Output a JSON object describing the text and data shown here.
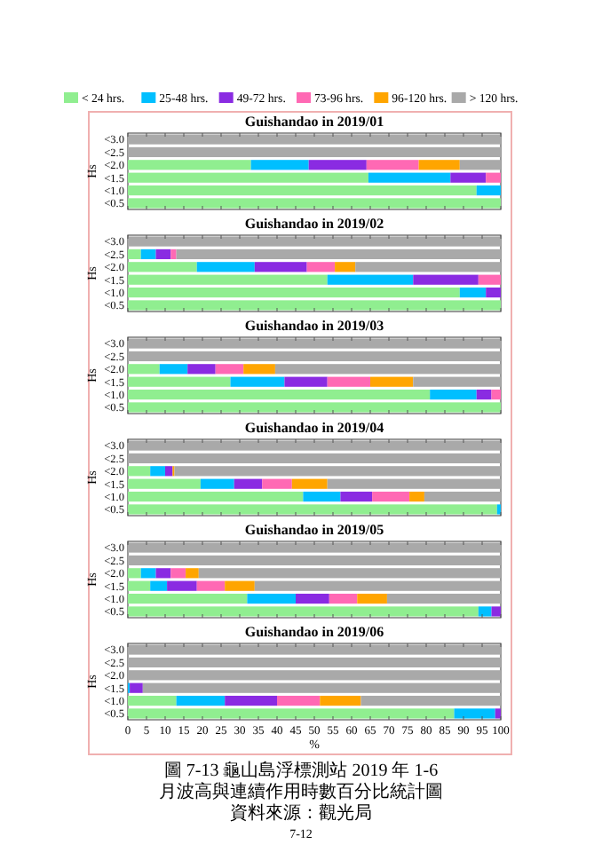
{
  "chart_data": [
    {
      "type": "bar",
      "orientation": "horizontal",
      "stacked": true,
      "title": "Guishandao in 2019/01",
      "ylabel": "Hs",
      "categories": [
        "<3.0",
        "<2.5",
        "<2.0",
        "<1.5",
        "<1.0",
        "<0.5"
      ],
      "xlim": [
        0,
        100
      ],
      "xticks": [
        0,
        5,
        10,
        15,
        20,
        25,
        30,
        35,
        40,
        45,
        50,
        55,
        60,
        65,
        70,
        75,
        80,
        85,
        90,
        95,
        100
      ],
      "tick_labels": "y",
      "legend": "top",
      "series": [
        {
          "name": "< 24 hrs.",
          "color": "#90ee90",
          "values": [
            0,
            0,
            33,
            64.5,
            93.5,
            100
          ]
        },
        {
          "name": "25-48 hrs.",
          "color": "#00bfff",
          "values": [
            0,
            0,
            15.5,
            22,
            6.5,
            0
          ]
        },
        {
          "name": "49-72 hrs.",
          "color": "#8a2be2",
          "values": [
            0,
            0,
            15.5,
            9.5,
            0,
            0
          ]
        },
        {
          "name": "73-96 hrs.",
          "color": "#ff69b4",
          "values": [
            0,
            0,
            14,
            4,
            0,
            0
          ]
        },
        {
          "name": "96-120 hrs.",
          "color": "#ffa500",
          "values": [
            0,
            0,
            11,
            0,
            0,
            0
          ]
        },
        {
          "name": "> 120 hrs.",
          "color": "#a9a9a9",
          "values": [
            100,
            100,
            11,
            0,
            0,
            0
          ]
        }
      ]
    },
    {
      "type": "bar",
      "orientation": "horizontal",
      "stacked": true,
      "title": "Guishandao in 2019/02",
      "ylabel": "Hs",
      "categories": [
        "<3.0",
        "<2.5",
        "<2.0",
        "<1.5",
        "<1.0",
        "<0.5"
      ],
      "xlim": [
        0,
        100
      ],
      "xticks": [
        0,
        5,
        10,
        15,
        20,
        25,
        30,
        35,
        40,
        45,
        50,
        55,
        60,
        65,
        70,
        75,
        80,
        85,
        90,
        95,
        100
      ],
      "tick_labels": "y",
      "series": [
        {
          "color": "#90ee90",
          "values": [
            0,
            3.5,
            18.5,
            53.5,
            89,
            100
          ]
        },
        {
          "color": "#00bfff",
          "values": [
            0,
            4,
            15.5,
            23,
            7,
            0
          ]
        },
        {
          "color": "#8a2be2",
          "values": [
            0,
            4,
            14,
            17.5,
            4,
            0
          ]
        },
        {
          "color": "#ff69b4",
          "values": [
            0,
            1.5,
            7.5,
            6,
            0,
            0
          ]
        },
        {
          "color": "#ffa500",
          "values": [
            0,
            0,
            5.5,
            0,
            0,
            0
          ]
        },
        {
          "color": "#a9a9a9",
          "values": [
            100,
            87,
            39,
            0,
            0,
            0
          ]
        }
      ]
    },
    {
      "type": "bar",
      "orientation": "horizontal",
      "stacked": true,
      "title": "Guishandao in 2019/03",
      "ylabel": "Hs",
      "categories": [
        "<3.0",
        "<2.5",
        "<2.0",
        "<1.5",
        "<1.0",
        "<0.5"
      ],
      "xlim": [
        0,
        100
      ],
      "xticks": [
        0,
        5,
        10,
        15,
        20,
        25,
        30,
        35,
        40,
        45,
        50,
        55,
        60,
        65,
        70,
        75,
        80,
        85,
        90,
        95,
        100
      ],
      "tick_labels": "y",
      "series": [
        {
          "color": "#90ee90",
          "values": [
            0,
            0,
            8.5,
            27.5,
            81,
            100
          ]
        },
        {
          "color": "#00bfff",
          "values": [
            0,
            0,
            7.5,
            14.5,
            12.5,
            0
          ]
        },
        {
          "color": "#8a2be2",
          "values": [
            0,
            0,
            7.5,
            11.5,
            4,
            0
          ]
        },
        {
          "color": "#ff69b4",
          "values": [
            0,
            0,
            7.5,
            11.5,
            2.5,
            0
          ]
        },
        {
          "color": "#ffa500",
          "values": [
            0,
            0,
            8.5,
            11.5,
            0,
            0
          ]
        },
        {
          "color": "#a9a9a9",
          "values": [
            100,
            100,
            60.5,
            23.5,
            0,
            0
          ]
        }
      ]
    },
    {
      "type": "bar",
      "orientation": "horizontal",
      "stacked": true,
      "title": "Guishandao in 2019/04",
      "ylabel": "Hs",
      "categories": [
        "<3.0",
        "<2.5",
        "<2.0",
        "<1.5",
        "<1.0",
        "<0.5"
      ],
      "xlim": [
        0,
        100
      ],
      "xticks": [
        0,
        5,
        10,
        15,
        20,
        25,
        30,
        35,
        40,
        45,
        50,
        55,
        60,
        65,
        70,
        75,
        80,
        85,
        90,
        95,
        100
      ],
      "tick_labels": "y",
      "series": [
        {
          "color": "#90ee90",
          "values": [
            0,
            0,
            6,
            19.5,
            47,
            99
          ]
        },
        {
          "color": "#00bfff",
          "values": [
            0,
            0,
            4,
            9,
            10,
            1
          ]
        },
        {
          "color": "#8a2be2",
          "values": [
            0,
            0,
            2,
            7.5,
            8.5,
            0
          ]
        },
        {
          "color": "#ff69b4",
          "values": [
            0,
            0,
            0,
            8,
            10,
            0
          ]
        },
        {
          "color": "#ffa500",
          "values": [
            0,
            0,
            0.5,
            9.5,
            4,
            0
          ]
        },
        {
          "color": "#a9a9a9",
          "values": [
            100,
            100,
            87.5,
            46.5,
            20.5,
            0
          ]
        }
      ]
    },
    {
      "type": "bar",
      "orientation": "horizontal",
      "stacked": true,
      "title": "Guishandao in 2019/05",
      "ylabel": "Hs",
      "categories": [
        "<3.0",
        "<2.5",
        "<2.0",
        "<1.5",
        "<1.0",
        "<0.5"
      ],
      "xlim": [
        0,
        100
      ],
      "xticks": [
        0,
        5,
        10,
        15,
        20,
        25,
        30,
        35,
        40,
        45,
        50,
        55,
        60,
        65,
        70,
        75,
        80,
        85,
        90,
        95,
        100
      ],
      "tick_labels": "y",
      "series": [
        {
          "color": "#90ee90",
          "values": [
            0,
            0,
            3.5,
            6,
            32,
            94
          ]
        },
        {
          "color": "#00bfff",
          "values": [
            0,
            0,
            4,
            4.5,
            13,
            3.5
          ]
        },
        {
          "color": "#8a2be2",
          "values": [
            0,
            0,
            4,
            8,
            9,
            2.5
          ]
        },
        {
          "color": "#ff69b4",
          "values": [
            0,
            0,
            4,
            7.5,
            7.5,
            0
          ]
        },
        {
          "color": "#ffa500",
          "values": [
            0,
            0,
            3.5,
            8,
            8,
            0
          ]
        },
        {
          "color": "#a9a9a9",
          "values": [
            100,
            100,
            81,
            66,
            30.5,
            0
          ]
        }
      ]
    },
    {
      "type": "bar",
      "orientation": "horizontal",
      "stacked": true,
      "title": "Guishandao in 2019/06",
      "ylabel": "Hs",
      "xlabel": "%",
      "categories": [
        "<3.0",
        "<2.5",
        "<2.0",
        "<1.5",
        "<1.0",
        "<0.5"
      ],
      "xlim": [
        0,
        100
      ],
      "xticks": [
        0,
        5,
        10,
        15,
        20,
        25,
        30,
        35,
        40,
        45,
        50,
        55,
        60,
        65,
        70,
        75,
        80,
        85,
        90,
        95,
        100
      ],
      "annotations": [
        "圖 7-13 龜山島浮標測站 2019 年 1-6 月波高與連續作用時數百分比統計圖",
        "資料來源：觀光局",
        "7-12"
      ],
      "series": [
        {
          "color": "#90ee90",
          "values": [
            0,
            0,
            0,
            0,
            13,
            87.5
          ]
        },
        {
          "color": "#00bfff",
          "values": [
            0,
            0,
            0,
            0.5,
            13,
            11
          ]
        },
        {
          "color": "#8a2be2",
          "values": [
            0,
            0,
            0,
            3.5,
            14,
            1.5
          ]
        },
        {
          "color": "#ff69b4",
          "values": [
            0,
            0,
            0,
            0,
            11.5,
            0
          ]
        },
        {
          "color": "#ffa500",
          "values": [
            0,
            0,
            0,
            0,
            11,
            0
          ]
        },
        {
          "color": "#a9a9a9",
          "values": [
            100,
            100,
            100,
            96,
            37.5,
            0
          ]
        }
      ]
    }
  ]
}
